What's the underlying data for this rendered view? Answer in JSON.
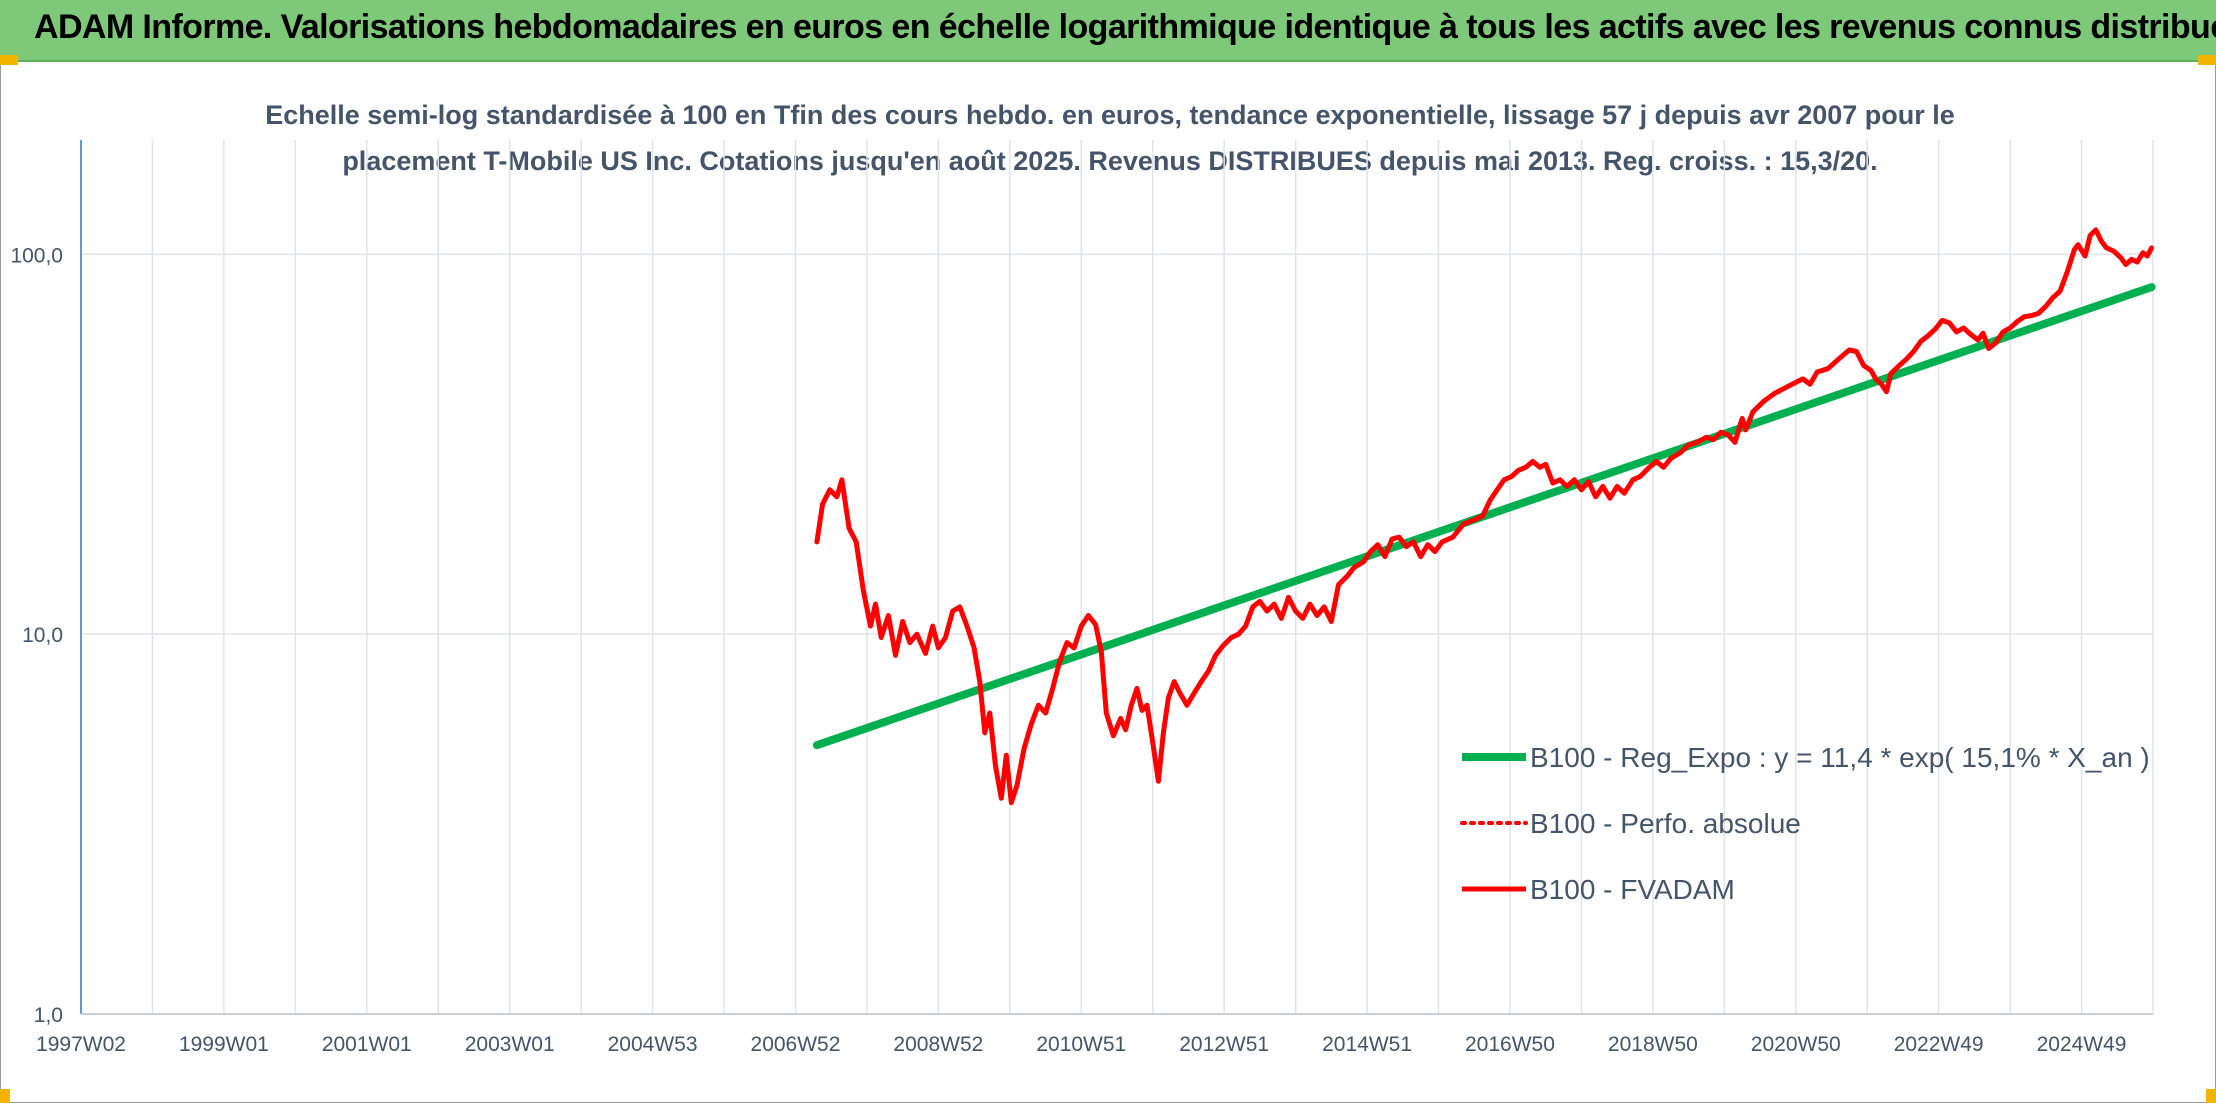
{
  "banner": {
    "title": "ADAM Informe. Valorisations hebdomadaires en euros en échelle logarithmique identique à tous les actifs avec les revenus connus distribués"
  },
  "chart_data": {
    "type": "line",
    "title_line1": "Echelle semi-log standardisée à 100 en Tfin des cours hebdo. en euros, tendance exponentielle, lissage 57 j depuis avr 2007 pour le",
    "title_line2": "placement T-Mobile US Inc. Cotations jusqu'en août 2025. Revenus DISTRIBUES depuis mai 2013. Reg. croiss. : 15,3/20.",
    "xlabel": "",
    "ylabel": "",
    "y_scale": "log",
    "ylim": [
      1,
      200
    ],
    "xlim": [
      1997.0,
      2026.0
    ],
    "grid": true,
    "legend_position": "center-right",
    "y_ticks": [
      {
        "value": 1,
        "label": "1,0"
      },
      {
        "value": 10,
        "label": "10,0"
      },
      {
        "value": 100,
        "label": "100,0"
      }
    ],
    "x_ticks": [
      {
        "value": 1997.0,
        "label": "1997W02"
      },
      {
        "value": 1999.0,
        "label": "1999W01"
      },
      {
        "value": 2001.0,
        "label": "2001W01"
      },
      {
        "value": 2003.0,
        "label": "2003W01"
      },
      {
        "value": 2005.0,
        "label": "2004W53"
      },
      {
        "value": 2007.0,
        "label": "2006W52"
      },
      {
        "value": 2009.0,
        "label": "2008W52"
      },
      {
        "value": 2011.0,
        "label": "2010W51"
      },
      {
        "value": 2013.0,
        "label": "2012W51"
      },
      {
        "value": 2015.0,
        "label": "2014W51"
      },
      {
        "value": 2017.0,
        "label": "2016W50"
      },
      {
        "value": 2019.0,
        "label": "2018W50"
      },
      {
        "value": 2021.0,
        "label": "2020W50"
      },
      {
        "value": 2023.0,
        "label": "2022W49"
      },
      {
        "value": 2025.0,
        "label": "2024W49"
      }
    ],
    "series": [
      {
        "name": "B100 - Reg_Expo : y = 11,4 * exp( 15,1% *  X_an )",
        "color": "#00b050",
        "style": "solid",
        "points": [
          [
            2007.3,
            5.1
          ],
          [
            2025.98,
            82.0
          ]
        ]
      },
      {
        "name": "B100 - Perfo. absolue",
        "color": "#ff0000",
        "style": "dotted",
        "points": []
      },
      {
        "name": "B100 - FVADAM",
        "color": "#ff0000",
        "style": "solid",
        "points": [
          [
            2007.3,
            17.5
          ],
          [
            2007.38,
            22.0
          ],
          [
            2007.48,
            24.0
          ],
          [
            2007.58,
            23.0
          ],
          [
            2007.65,
            25.5
          ],
          [
            2007.75,
            19.0
          ],
          [
            2007.85,
            17.5
          ],
          [
            2007.95,
            13.0
          ],
          [
            2008.05,
            10.5
          ],
          [
            2008.12,
            12.0
          ],
          [
            2008.2,
            9.8
          ],
          [
            2008.3,
            11.2
          ],
          [
            2008.4,
            8.8
          ],
          [
            2008.5,
            10.8
          ],
          [
            2008.6,
            9.5
          ],
          [
            2008.7,
            10.0
          ],
          [
            2008.82,
            8.9
          ],
          [
            2008.92,
            10.5
          ],
          [
            2009.0,
            9.2
          ],
          [
            2009.1,
            9.8
          ],
          [
            2009.2,
            11.5
          ],
          [
            2009.3,
            11.8
          ],
          [
            2009.4,
            10.5
          ],
          [
            2009.5,
            9.2
          ],
          [
            2009.58,
            7.5
          ],
          [
            2009.65,
            5.5
          ],
          [
            2009.72,
            6.2
          ],
          [
            2009.8,
            4.5
          ],
          [
            2009.88,
            3.7
          ],
          [
            2009.95,
            4.8
          ],
          [
            2010.02,
            3.6
          ],
          [
            2010.1,
            4.0
          ],
          [
            2010.2,
            5.0
          ],
          [
            2010.3,
            5.8
          ],
          [
            2010.4,
            6.5
          ],
          [
            2010.5,
            6.2
          ],
          [
            2010.6,
            7.2
          ],
          [
            2010.7,
            8.5
          ],
          [
            2010.8,
            9.5
          ],
          [
            2010.9,
            9.2
          ],
          [
            2011.0,
            10.5
          ],
          [
            2011.1,
            11.2
          ],
          [
            2011.2,
            10.6
          ],
          [
            2011.28,
            9.0
          ],
          [
            2011.35,
            6.2
          ],
          [
            2011.45,
            5.4
          ],
          [
            2011.55,
            6.0
          ],
          [
            2011.62,
            5.6
          ],
          [
            2011.7,
            6.5
          ],
          [
            2011.78,
            7.2
          ],
          [
            2011.85,
            6.3
          ],
          [
            2011.92,
            6.5
          ],
          [
            2012.0,
            5.2
          ],
          [
            2012.08,
            4.1
          ],
          [
            2012.15,
            5.5
          ],
          [
            2012.22,
            6.8
          ],
          [
            2012.3,
            7.5
          ],
          [
            2012.38,
            7.0
          ],
          [
            2012.48,
            6.5
          ],
          [
            2012.58,
            7.0
          ],
          [
            2012.68,
            7.5
          ],
          [
            2012.78,
            8.0
          ],
          [
            2012.88,
            8.8
          ],
          [
            2012.98,
            9.3
          ],
          [
            2013.1,
            9.8
          ],
          [
            2013.2,
            10.0
          ],
          [
            2013.3,
            10.5
          ],
          [
            2013.4,
            11.8
          ],
          [
            2013.5,
            12.2
          ],
          [
            2013.6,
            11.5
          ],
          [
            2013.7,
            12.0
          ],
          [
            2013.8,
            11.0
          ],
          [
            2013.9,
            12.5
          ],
          [
            2014.0,
            11.5
          ],
          [
            2014.1,
            11.0
          ],
          [
            2014.2,
            12.0
          ],
          [
            2014.3,
            11.2
          ],
          [
            2014.4,
            11.8
          ],
          [
            2014.5,
            10.8
          ],
          [
            2014.6,
            13.5
          ],
          [
            2014.72,
            14.2
          ],
          [
            2014.82,
            15.0
          ],
          [
            2014.95,
            15.5
          ],
          [
            2015.05,
            16.5
          ],
          [
            2015.15,
            17.2
          ],
          [
            2015.25,
            16.0
          ],
          [
            2015.35,
            17.8
          ],
          [
            2015.45,
            18.0
          ],
          [
            2015.55,
            17.0
          ],
          [
            2015.65,
            17.5
          ],
          [
            2015.75,
            16.0
          ],
          [
            2015.85,
            17.2
          ],
          [
            2015.95,
            16.5
          ],
          [
            2016.05,
            17.5
          ],
          [
            2016.2,
            18.0
          ],
          [
            2016.35,
            19.5
          ],
          [
            2016.5,
            20.0
          ],
          [
            2016.62,
            20.5
          ],
          [
            2016.72,
            22.5
          ],
          [
            2016.82,
            24.0
          ],
          [
            2016.92,
            25.5
          ],
          [
            2017.02,
            26.0
          ],
          [
            2017.12,
            27.0
          ],
          [
            2017.22,
            27.5
          ],
          [
            2017.32,
            28.5
          ],
          [
            2017.42,
            27.5
          ],
          [
            2017.5,
            28.0
          ],
          [
            2017.6,
            25.0
          ],
          [
            2017.7,
            25.5
          ],
          [
            2017.8,
            24.5
          ],
          [
            2017.9,
            25.5
          ],
          [
            2018.0,
            24.0
          ],
          [
            2018.1,
            25.2
          ],
          [
            2018.2,
            23.0
          ],
          [
            2018.3,
            24.5
          ],
          [
            2018.4,
            22.8
          ],
          [
            2018.5,
            24.5
          ],
          [
            2018.6,
            23.5
          ],
          [
            2018.72,
            25.5
          ],
          [
            2018.82,
            26.0
          ],
          [
            2018.95,
            27.5
          ],
          [
            2019.05,
            28.5
          ],
          [
            2019.15,
            27.5
          ],
          [
            2019.25,
            29.0
          ],
          [
            2019.38,
            30.0
          ],
          [
            2019.5,
            31.5
          ],
          [
            2019.62,
            32.0
          ],
          [
            2019.75,
            33.0
          ],
          [
            2019.85,
            32.5
          ],
          [
            2019.95,
            34.0
          ],
          [
            2020.05,
            33.5
          ],
          [
            2020.15,
            32.0
          ],
          [
            2020.25,
            37.0
          ],
          [
            2020.3,
            34.5
          ],
          [
            2020.4,
            38.5
          ],
          [
            2020.55,
            41.0
          ],
          [
            2020.7,
            43.0
          ],
          [
            2020.85,
            44.5
          ],
          [
            2021.0,
            46.0
          ],
          [
            2021.1,
            47.0
          ],
          [
            2021.2,
            45.5
          ],
          [
            2021.3,
            49.0
          ],
          [
            2021.45,
            50.0
          ],
          [
            2021.55,
            52.0
          ],
          [
            2021.65,
            54.0
          ],
          [
            2021.75,
            56.0
          ],
          [
            2021.85,
            55.5
          ],
          [
            2021.95,
            51.0
          ],
          [
            2022.05,
            49.5
          ],
          [
            2022.12,
            47.0
          ],
          [
            2022.2,
            45.5
          ],
          [
            2022.27,
            43.5
          ],
          [
            2022.33,
            48.5
          ],
          [
            2022.45,
            51.0
          ],
          [
            2022.55,
            53.0
          ],
          [
            2022.65,
            55.5
          ],
          [
            2022.75,
            59.0
          ],
          [
            2022.85,
            61.0
          ],
          [
            2022.95,
            63.5
          ],
          [
            2023.05,
            67.0
          ],
          [
            2023.15,
            66.0
          ],
          [
            2023.25,
            62.5
          ],
          [
            2023.35,
            64.0
          ],
          [
            2023.45,
            61.5
          ],
          [
            2023.55,
            59.5
          ],
          [
            2023.62,
            62.0
          ],
          [
            2023.7,
            56.5
          ],
          [
            2023.8,
            58.5
          ],
          [
            2023.9,
            62.5
          ],
          [
            2024.0,
            64.0
          ],
          [
            2024.1,
            66.5
          ],
          [
            2024.2,
            68.5
          ],
          [
            2024.3,
            69.0
          ],
          [
            2024.4,
            70.0
          ],
          [
            2024.5,
            73.0
          ],
          [
            2024.6,
            77.0
          ],
          [
            2024.7,
            80.0
          ],
          [
            2024.8,
            90.0
          ],
          [
            2024.9,
            103.0
          ],
          [
            2024.95,
            106.0
          ],
          [
            2025.05,
            99.0
          ],
          [
            2025.12,
            112.0
          ],
          [
            2025.2,
            116.0
          ],
          [
            2025.28,
            108.0
          ],
          [
            2025.35,
            104.0
          ],
          [
            2025.45,
            102.0
          ],
          [
            2025.55,
            98.0
          ],
          [
            2025.62,
            94.0
          ],
          [
            2025.7,
            97.0
          ],
          [
            2025.78,
            95.5
          ],
          [
            2025.86,
            101.0
          ],
          [
            2025.92,
            99.0
          ],
          [
            2025.98,
            104.0
          ]
        ]
      }
    ]
  }
}
